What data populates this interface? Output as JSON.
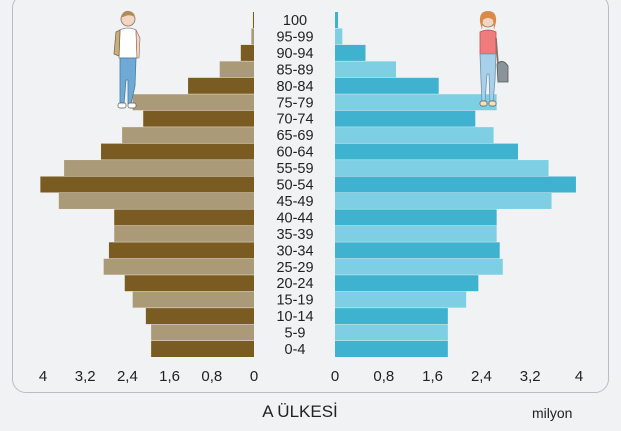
{
  "caption": "A ÜLKESİ",
  "unit": "milyon",
  "chart_data": {
    "type": "bar",
    "orientation": "horizontal-population-pyramid",
    "categories": [
      "100",
      "95-99",
      "90-94",
      "85-89",
      "80-84",
      "75-79",
      "70-74",
      "65-69",
      "60-64",
      "55-59",
      "50-54",
      "45-49",
      "40-44",
      "35-39",
      "30-34",
      "25-29",
      "20-24",
      "15-19",
      "10-14",
      "5-9",
      "0-4"
    ],
    "series": [
      {
        "values": [
          0.02,
          0.05,
          0.25,
          0.65,
          1.25,
          2.3,
          2.1,
          2.5,
          2.9,
          3.6,
          4.05,
          3.7,
          2.65,
          2.65,
          2.75,
          2.85,
          2.45,
          2.3,
          2.05,
          1.95,
          1.95
        ]
      },
      {
        "values": [
          0.05,
          0.12,
          0.5,
          1.0,
          1.7,
          2.65,
          2.3,
          2.6,
          3.0,
          3.5,
          3.95,
          3.55,
          2.65,
          2.65,
          2.7,
          2.75,
          2.35,
          2.15,
          1.85,
          1.85,
          1.85
        ]
      }
    ],
    "left_ticks": [
      "4",
      "3,2",
      "2,4",
      "1,6",
      "0,8",
      "0"
    ],
    "right_ticks": [
      "0",
      "0,8",
      "1,6",
      "2,4",
      "3,2",
      "4"
    ],
    "xlim": [
      0,
      4
    ],
    "colors": {
      "left_dark": "#7a5c22",
      "left_light": "#ab9a78",
      "right_dark": "#3fb2cf",
      "right_light": "#7ecfe3",
      "text": "#222222"
    }
  },
  "icons": {
    "left_figure": "male-student-icon",
    "right_figure": "female-student-icon"
  }
}
